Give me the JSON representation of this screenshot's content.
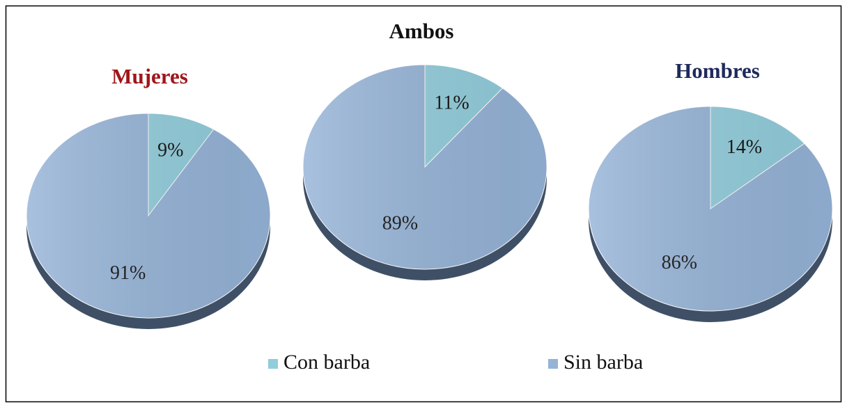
{
  "chart_data": [
    {
      "type": "pie",
      "title": "Mujeres",
      "title_color": "#a0151a",
      "values": [
        9,
        91
      ],
      "value_labels": [
        "9%",
        "91%"
      ]
    },
    {
      "type": "pie",
      "title": "Ambos",
      "title_color": "#111111",
      "values": [
        11,
        89
      ],
      "value_labels": [
        "11%",
        "89%"
      ]
    },
    {
      "type": "pie",
      "title": "Hombres",
      "title_color": "#1f2a5c",
      "values": [
        14,
        86
      ],
      "value_labels": [
        "14%",
        "86%"
      ]
    }
  ],
  "legend": {
    "names": [
      "Con barba",
      "Sin barba"
    ],
    "colors": [
      "#92cddc",
      "#95b3d7"
    ]
  }
}
